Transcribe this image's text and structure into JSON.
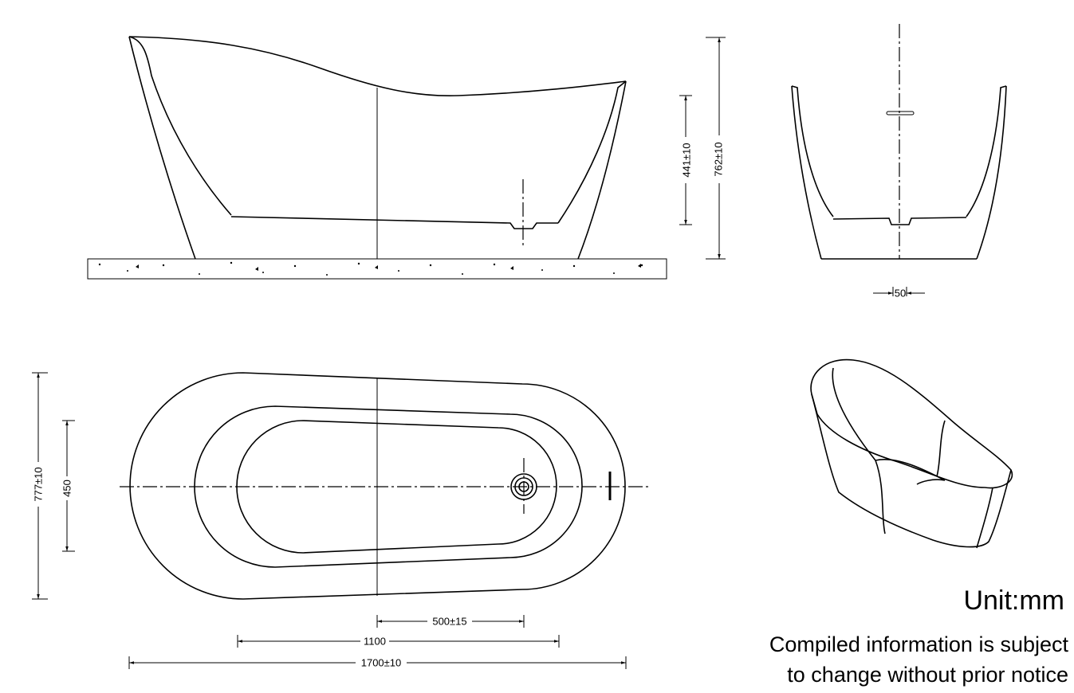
{
  "side_view": {
    "dimensions": [
      "441±10",
      "762±10"
    ]
  },
  "end_view": {
    "dimensions": [
      "50"
    ]
  },
  "top_view": {
    "dimensions": [
      "777±10",
      "450",
      "500±15",
      "1100",
      "1700±10"
    ]
  },
  "notes": {
    "unit": "Unit:mm",
    "disclaimer": [
      "Compiled information is subject",
      "to change without prior notice"
    ]
  }
}
